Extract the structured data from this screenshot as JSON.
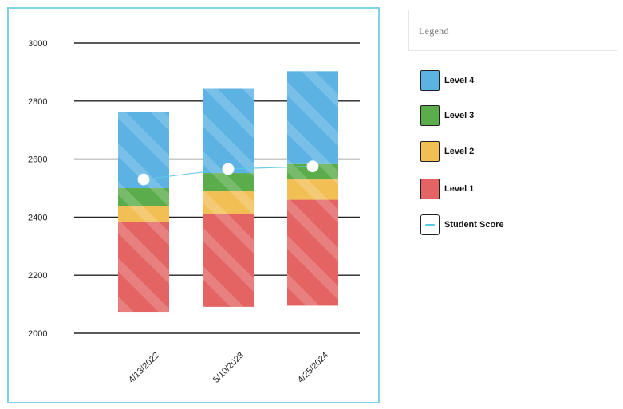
{
  "chart_data": {
    "type": "bar",
    "stacked": true,
    "categories": [
      "4/13/2022",
      "5/10/2023",
      "4/25/2024"
    ],
    "ylim": [
      2000,
      3000
    ],
    "yticks": [
      2000,
      2200,
      2400,
      2600,
      2800,
      3000
    ],
    "grid": true,
    "legend_position": "right",
    "series": [
      {
        "name": "Level 1",
        "color": "#e46464",
        "bottom": [
          2074,
          2091,
          2095
        ],
        "top": [
          2384,
          2410,
          2460
        ]
      },
      {
        "name": "Level 2",
        "color": "#f2bf55",
        "bottom": [
          2384,
          2410,
          2460
        ],
        "top": [
          2437,
          2489,
          2530
        ]
      },
      {
        "name": "Level 3",
        "color": "#5aad4a",
        "bottom": [
          2437,
          2489,
          2530
        ],
        "top": [
          2500,
          2552,
          2583
        ]
      },
      {
        "name": "Level 4",
        "color": "#5cb2e3",
        "bottom": [
          2500,
          2552,
          2583
        ],
        "top": [
          2762,
          2842,
          2903
        ]
      }
    ],
    "student_score": {
      "name": "Student Score",
      "color": "#5cc8e8",
      "values": [
        2530,
        2566,
        2575
      ]
    }
  },
  "legend": {
    "title": "Legend",
    "items": [
      {
        "label": "Level 4",
        "color": "#5cb2e3"
      },
      {
        "label": "Level 3",
        "color": "#5aad4a"
      },
      {
        "label": "Level 2",
        "color": "#f2bf55"
      },
      {
        "label": "Level 1",
        "color": "#e46464"
      },
      {
        "label": "Student Score",
        "icon": "line-marker-icon"
      }
    ]
  }
}
